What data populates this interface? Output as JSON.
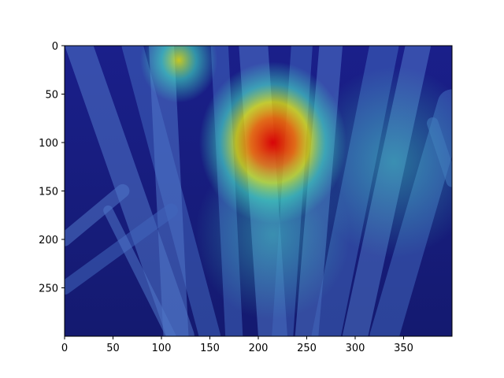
{
  "chart_data": {
    "type": "heatmap",
    "title": "",
    "xlabel": "",
    "ylabel": "",
    "image_width": 400,
    "image_height": 300,
    "xlim": [
      0,
      400
    ],
    "ylim": [
      300,
      0
    ],
    "y_axis_inverted": true,
    "x_ticks": [
      0,
      50,
      100,
      150,
      200,
      250,
      300,
      350
    ],
    "y_ticks": [
      0,
      50,
      100,
      150,
      200,
      250
    ],
    "colormap": "jet",
    "grid": false,
    "legend": "none",
    "background_image": "rice-plant-leaves-photo",
    "hotspots": [
      {
        "x": 215,
        "y": 100,
        "intensity": 1.0,
        "spread": 38
      },
      {
        "x": 118,
        "y": 15,
        "intensity": 0.65,
        "spread": 20
      },
      {
        "x": 215,
        "y": 195,
        "intensity": 0.35,
        "spread": 40
      },
      {
        "x": 340,
        "y": 120,
        "intensity": 0.3,
        "spread": 45
      }
    ]
  },
  "colors": {
    "base_low": "#000080",
    "mid": "#40e0c0",
    "high": "#ffff00",
    "peak": "#e00000"
  }
}
